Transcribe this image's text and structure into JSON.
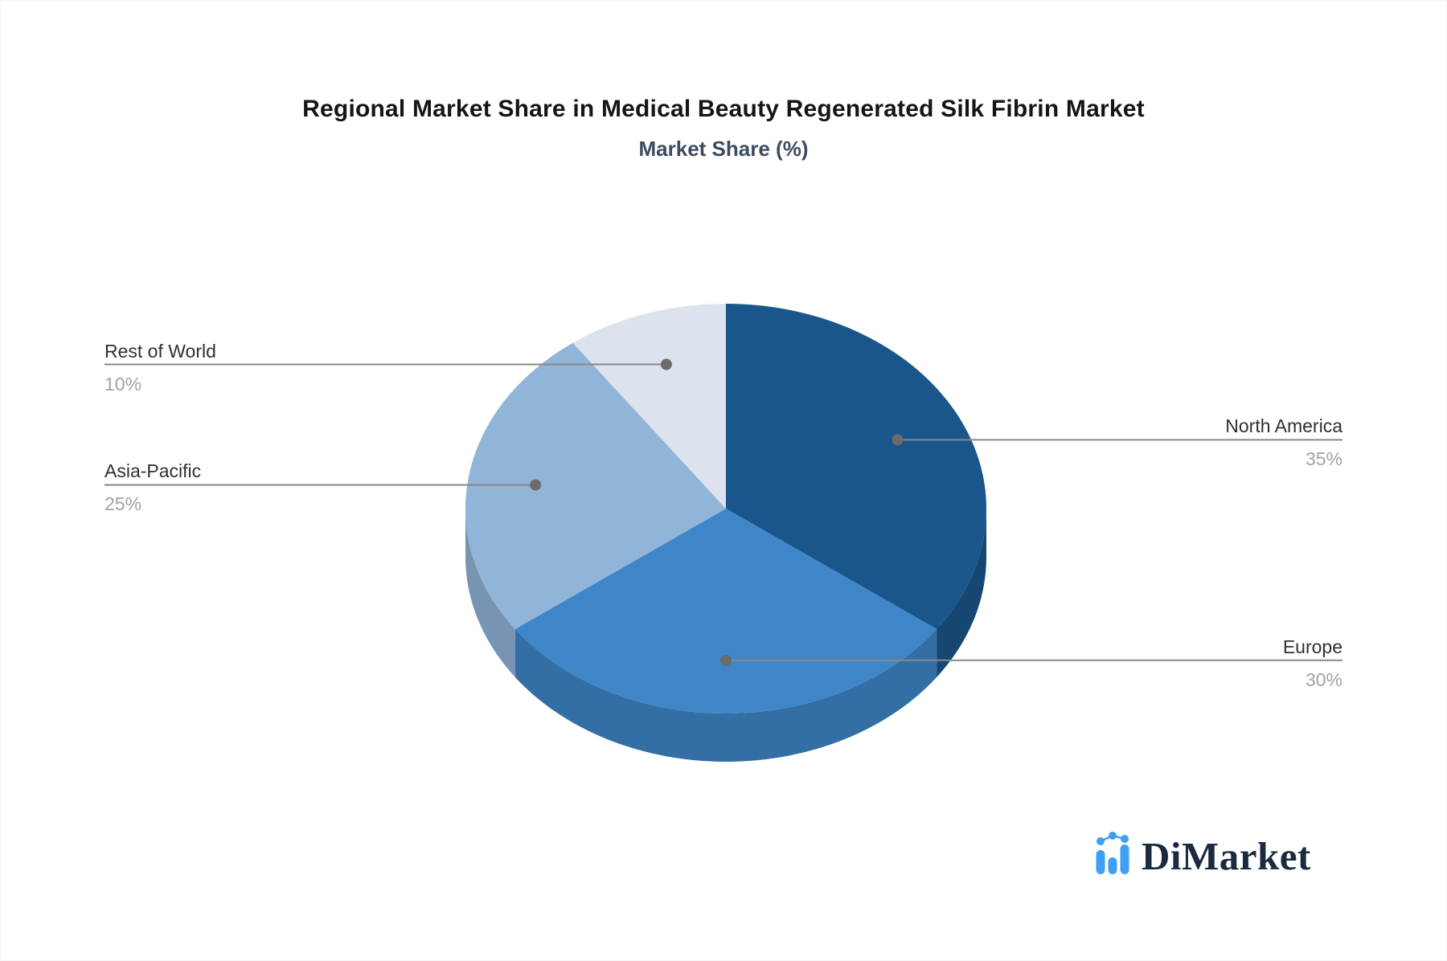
{
  "page": {
    "title": "Regional Market Share in Medical Beauty Regenerated Silk Fibrin Market",
    "subtitle": "Market Share (%)"
  },
  "chart_data": {
    "type": "pie",
    "title": "Regional Market Share in Medical Beauty Regenerated Silk Fibrin Market",
    "subtitle": "Market Share (%)",
    "unit": "%",
    "start_angle": "12-o-clock",
    "direction": "clockwise",
    "effect": "3d-depth",
    "legend_position": "callout-labels",
    "categories": [
      "North America",
      "Europe",
      "Asia-Pacific",
      "Rest of World"
    ],
    "values": [
      35,
      30,
      25,
      10
    ],
    "slices": [
      {
        "label": "North America",
        "value": 35,
        "pct_label": "35%",
        "color": "#1A568B",
        "label_side": "right"
      },
      {
        "label": "Europe",
        "value": 30,
        "pct_label": "30%",
        "color": "#3E86C8",
        "label_side": "right"
      },
      {
        "label": "Asia-Pacific",
        "value": 25,
        "pct_label": "25%",
        "color": "#91B4D9",
        "label_side": "left"
      },
      {
        "label": "Rest of World",
        "value": 10,
        "pct_label": "10%",
        "color": "#DCE3EE",
        "label_side": "left"
      }
    ]
  },
  "logo": {
    "text": "DiMarket",
    "icon": "bar-chart-trend-icon",
    "icon_color": "#3E9FF3",
    "text_color": "#1B2A3F"
  },
  "style": {
    "title_color": "#131619",
    "subtitle_color": "#3E4B5F",
    "label_color": "#303030",
    "pct_color": "#A2A2A2",
    "leader_line_color": "#87888A",
    "leader_dot_color": "#6B6B6B",
    "background_color": "#FFFFFF"
  }
}
